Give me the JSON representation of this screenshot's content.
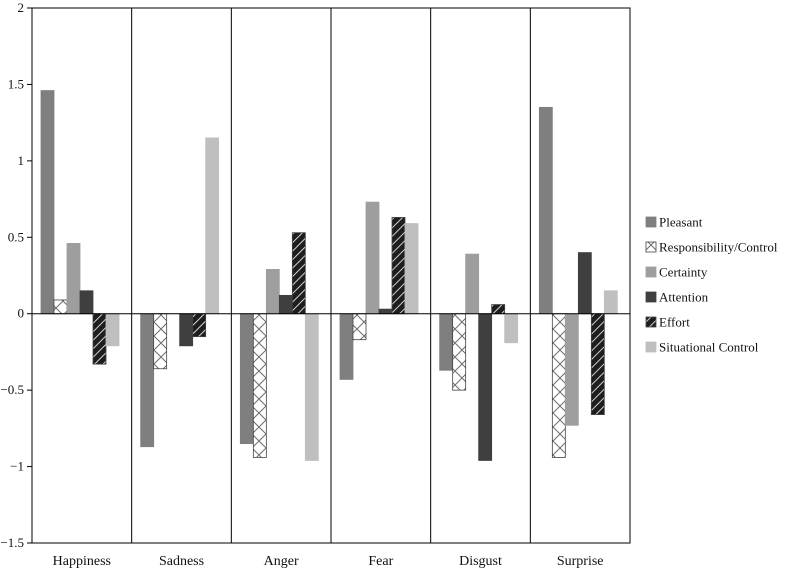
{
  "chart_data": {
    "type": "bar",
    "title": "",
    "xlabel": "",
    "ylabel": "",
    "ylim": [
      -1.5,
      2
    ],
    "yticks": [
      2,
      1.5,
      1,
      0.5,
      0,
      -0.5,
      -1,
      -1.5
    ],
    "ytick_labels": [
      "2",
      "1.5",
      "1",
      "0.5",
      "0",
      "−0.5",
      "−1",
      "−1.5"
    ],
    "grid": false,
    "legend_position": "right",
    "categories": [
      "Happiness",
      "Sadness",
      "Anger",
      "Fear",
      "Disgust",
      "Surprise"
    ],
    "series": [
      {
        "name": "Pleasant",
        "fill": "#7f7f7f",
        "pattern": "solid",
        "values": [
          1.46,
          -0.87,
          -0.85,
          -0.43,
          -0.37,
          1.35
        ]
      },
      {
        "name": "Responsibility/Control",
        "fill": "#ffffff",
        "pattern": "crosshatch",
        "values": [
          0.09,
          -0.36,
          -0.94,
          -0.17,
          -0.5,
          -0.94
        ]
      },
      {
        "name": "Certainty",
        "fill": "#9e9e9e",
        "pattern": "solid",
        "values": [
          0.46,
          0.0,
          0.29,
          0.73,
          0.39,
          -0.73
        ]
      },
      {
        "name": "Attention",
        "fill": "#3f3f3f",
        "pattern": "solid",
        "values": [
          0.15,
          -0.21,
          0.12,
          0.03,
          -0.96,
          0.4
        ]
      },
      {
        "name": "Effort",
        "fill": "#2a2a2a",
        "pattern": "diagonal",
        "values": [
          -0.33,
          -0.15,
          0.53,
          0.63,
          0.06,
          -0.66
        ]
      },
      {
        "name": "Situational Control",
        "fill": "#bfbfbf",
        "pattern": "solid",
        "values": [
          -0.21,
          1.15,
          -0.96,
          0.59,
          -0.19,
          0.15
        ]
      }
    ]
  }
}
